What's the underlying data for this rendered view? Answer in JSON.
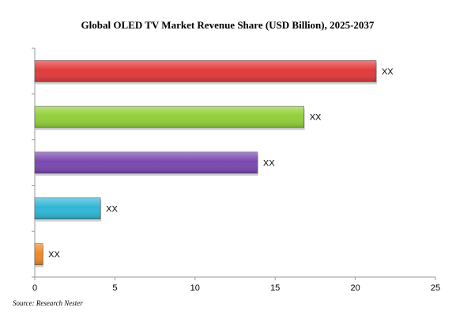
{
  "chart_data": {
    "type": "bar",
    "orientation": "horizontal",
    "title": "Global OLED TV Market Revenue Share (USD Billion),  2025-2037",
    "categories": [
      "",
      "",
      "",
      "",
      ""
    ],
    "values": [
      21.3,
      16.8,
      13.9,
      4.1,
      0.5
    ],
    "data_labels": [
      "XX",
      "XX",
      "XX",
      "XX",
      "XX"
    ],
    "colors": [
      "#e23b3b",
      "#93cf3b",
      "#7a47b0",
      "#2fb7d6",
      "#f08a24"
    ],
    "xlim": [
      0,
      25
    ],
    "xticks": [
      0,
      5,
      10,
      15,
      20,
      25
    ],
    "grid": false,
    "legend": "none"
  },
  "source": "Source: Research Nester"
}
